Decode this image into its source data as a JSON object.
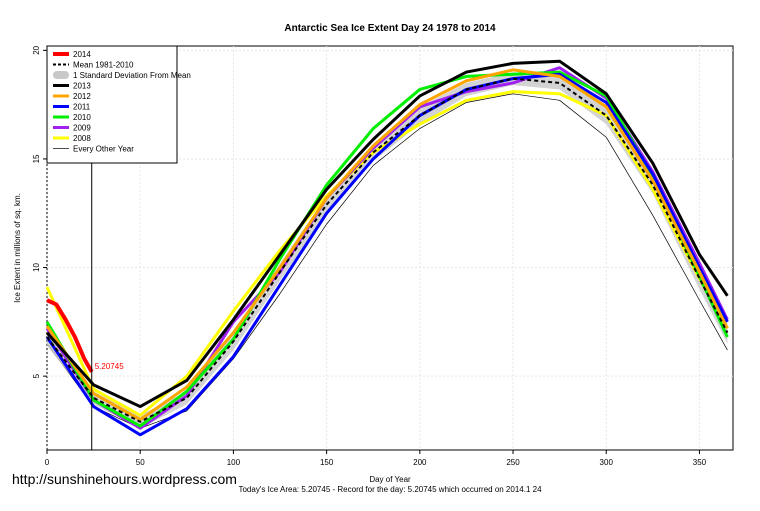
{
  "chart_data": {
    "type": "line",
    "title": "Antarctic Sea Ice Extent Day 24 1978 to 2014",
    "x_label": "Day of Year",
    "y_label": "Ice Extent in millions of sq. km.",
    "footer": "Today's Ice Area: 5.20745  - Record for the day: 5.20745 which occurred on 2014.1 24",
    "watermark": "http://sunshinehours.wordpress.com",
    "annotation": "5.20745",
    "marker_day": 24,
    "xlim": [
      0,
      368
    ],
    "ylim": [
      1.6,
      20.2
    ],
    "xticks": [
      0,
      50,
      100,
      150,
      200,
      250,
      300,
      350
    ],
    "yticks": [
      5,
      10,
      15,
      20
    ],
    "grid": true,
    "legend": "top-left",
    "x": [
      0,
      25,
      50,
      75,
      100,
      125,
      150,
      175,
      200,
      225,
      250,
      275,
      300,
      325,
      350,
      365
    ],
    "series": [
      {
        "name": "2014",
        "color": "#ff0000",
        "width": 4,
        "x": [
          0,
          5,
          10,
          15,
          20,
          24
        ],
        "values": [
          8.5,
          8.3,
          7.6,
          6.8,
          5.8,
          5.2
        ]
      },
      {
        "name": "Mean 1981-2010",
        "color": "#000000",
        "width": 2,
        "style": "dash",
        "values": [
          6.8,
          4.0,
          2.9,
          4.0,
          6.6,
          9.8,
          12.9,
          15.3,
          17.0,
          18.2,
          18.7,
          18.5,
          17.0,
          13.8,
          9.5,
          7.0
        ]
      },
      {
        "name": "1 Standard Deviation From Mean",
        "color": "#c8c8c8",
        "style": "band",
        "values": [
          0.4,
          0.3,
          0.3,
          0.3,
          0.4,
          0.4,
          0.4,
          0.4,
          0.4,
          0.3,
          0.3,
          0.3,
          0.4,
          0.4,
          0.5,
          0.5
        ]
      },
      {
        "name": "2013",
        "color": "#000000",
        "width": 3,
        "values": [
          7.0,
          4.6,
          3.6,
          4.8,
          7.6,
          10.6,
          13.6,
          15.9,
          17.9,
          19.0,
          19.4,
          19.5,
          18.0,
          14.8,
          10.6,
          8.7
        ]
      },
      {
        "name": "2012",
        "color": "#ffa500",
        "width": 3,
        "values": [
          7.3,
          4.2,
          3.0,
          4.5,
          7.0,
          10.0,
          13.2,
          15.6,
          17.5,
          18.6,
          19.1,
          18.8,
          17.4,
          14.0,
          9.8,
          7.2
        ]
      },
      {
        "name": "2011",
        "color": "#0000ff",
        "width": 3,
        "values": [
          6.8,
          3.6,
          2.3,
          3.5,
          5.9,
          9.2,
          12.5,
          15.0,
          17.0,
          18.2,
          18.7,
          18.9,
          17.6,
          14.3,
          10.0,
          7.5
        ]
      },
      {
        "name": "2010",
        "color": "#00ee00",
        "width": 3,
        "values": [
          7.5,
          3.9,
          2.7,
          4.3,
          6.7,
          10.4,
          13.8,
          16.4,
          18.2,
          18.8,
          18.9,
          19.0,
          17.9,
          14.2,
          9.6,
          6.8
        ]
      },
      {
        "name": "2009",
        "color": "#a020f0",
        "width": 3,
        "values": [
          7.2,
          3.9,
          2.6,
          4.1,
          7.5,
          9.8,
          13.2,
          15.5,
          17.4,
          18.1,
          18.5,
          19.2,
          17.8,
          14.4,
          10.2,
          7.6
        ]
      },
      {
        "name": "2008",
        "color": "#ffff00",
        "width": 3,
        "values": [
          9.1,
          4.4,
          3.2,
          5.0,
          8.0,
          10.8,
          13.3,
          15.3,
          16.6,
          17.7,
          18.1,
          18.0,
          17.0,
          13.6,
          9.5,
          7.2
        ]
      },
      {
        "name": "Every Other Year",
        "color": "#000000",
        "width": 0.7,
        "values": [
          6.5,
          3.6,
          2.6,
          3.4,
          5.8,
          8.8,
          12.0,
          14.7,
          16.4,
          17.6,
          18.0,
          17.7,
          16.0,
          12.4,
          8.5,
          6.2
        ]
      }
    ]
  }
}
